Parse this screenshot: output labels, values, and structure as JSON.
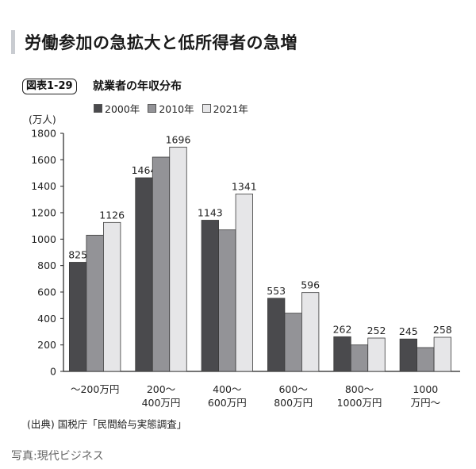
{
  "article": {
    "heading": "労働参加の急拡大と低所得者の急増",
    "photo_credit": "写真:現代ビジネス"
  },
  "figure": {
    "tag": "図表1-29",
    "title": "就業者の年収分布",
    "unit": "(万人)",
    "source": "(出典) 国税庁「民間給与実態調査」"
  },
  "colors": {
    "2000": "#4a4a4d",
    "2010": "#939397",
    "2021": "#e6e6e8"
  },
  "chart_data": {
    "type": "bar",
    "title": "就業者の年収分布",
    "ylabel": "(万人)",
    "xlabel": "",
    "ylim": [
      0,
      1800
    ],
    "yticks": [
      0,
      200,
      400,
      600,
      800,
      1000,
      1200,
      1400,
      1600,
      1800
    ],
    "grid": false,
    "legend_position": "top-left",
    "categories": [
      [
        "〜200万円"
      ],
      [
        "200〜",
        "400万円"
      ],
      [
        "400〜",
        "600万円"
      ],
      [
        "600〜",
        "800万円"
      ],
      [
        "800〜",
        "1000万円"
      ],
      [
        "1000",
        "万円〜"
      ]
    ],
    "series": [
      {
        "name": "2000年",
        "color_key": "2000",
        "values": [
          825,
          1464,
          1143,
          553,
          262,
          245
        ],
        "labeled": true
      },
      {
        "name": "2010年",
        "color_key": "2010",
        "values": [
          1030,
          1620,
          1070,
          440,
          200,
          180
        ],
        "labeled": false
      },
      {
        "name": "2021年",
        "color_key": "2021",
        "values": [
          1126,
          1696,
          1341,
          596,
          252,
          258
        ],
        "labeled": true
      }
    ]
  }
}
